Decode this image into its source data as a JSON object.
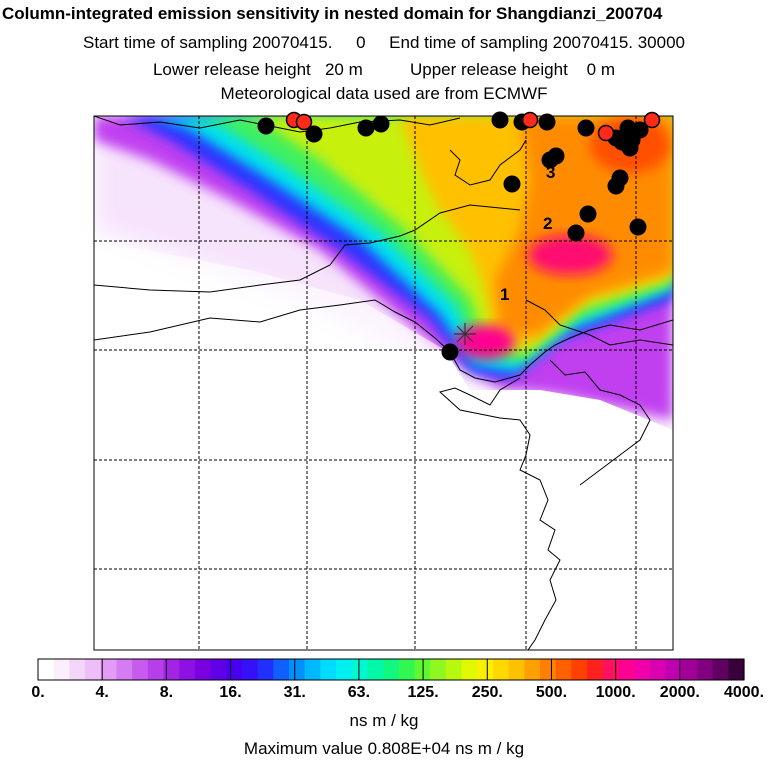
{
  "header": {
    "title": "Column-integrated emission sensitivity in nested domain for Shangdianzi_200704",
    "sampling_line": "Start time of sampling 20070415.     0     End time of sampling 20070415. 30000",
    "release_line": "Lower release height   20 m          Upper release height    0 m",
    "met_line": "Meteorological data used are from ECMWF"
  },
  "chart_data": {
    "type": "heatmap",
    "title": "Column-integrated emission sensitivity in nested domain for Shangdianzi_200704",
    "colorbar": {
      "ticks": [
        "0.",
        "4.",
        "8.",
        "16.",
        "31.",
        "63.",
        "125.",
        "250.",
        "500.",
        "1000.",
        "2000.",
        "4000."
      ],
      "units": "ns m / kg",
      "colors": [
        "#ffffff",
        "#fbeefd",
        "#f4d6fb",
        "#edbef8",
        "#e39cf5",
        "#d67cf2",
        "#c85aee",
        "#b63fea",
        "#a424e6",
        "#8f10e3",
        "#7a00e0",
        "#5f00e6",
        "#4a00f0",
        "#3510f8",
        "#2030ff",
        "#1060ff",
        "#0090ff",
        "#00b8ff",
        "#00dcff",
        "#00f0f0",
        "#00f8d0",
        "#00f8a8",
        "#10f880",
        "#30f850",
        "#60f830",
        "#90f820",
        "#b8f810",
        "#e0f800",
        "#f8f000",
        "#ffd800",
        "#ffc000",
        "#ffa000",
        "#ff8000",
        "#ff6000",
        "#ff4000",
        "#ff2020",
        "#ff1060",
        "#ff0090",
        "#f000a8",
        "#d800b0",
        "#c000b0",
        "#a00098",
        "#800080",
        "#600060",
        "#3a003a"
      ]
    },
    "max_value_line": "Maximum value  0.808E+04 ns m / kg",
    "annotations": [
      "1",
      "2",
      "3"
    ],
    "receptor": "Shangdianzi"
  }
}
